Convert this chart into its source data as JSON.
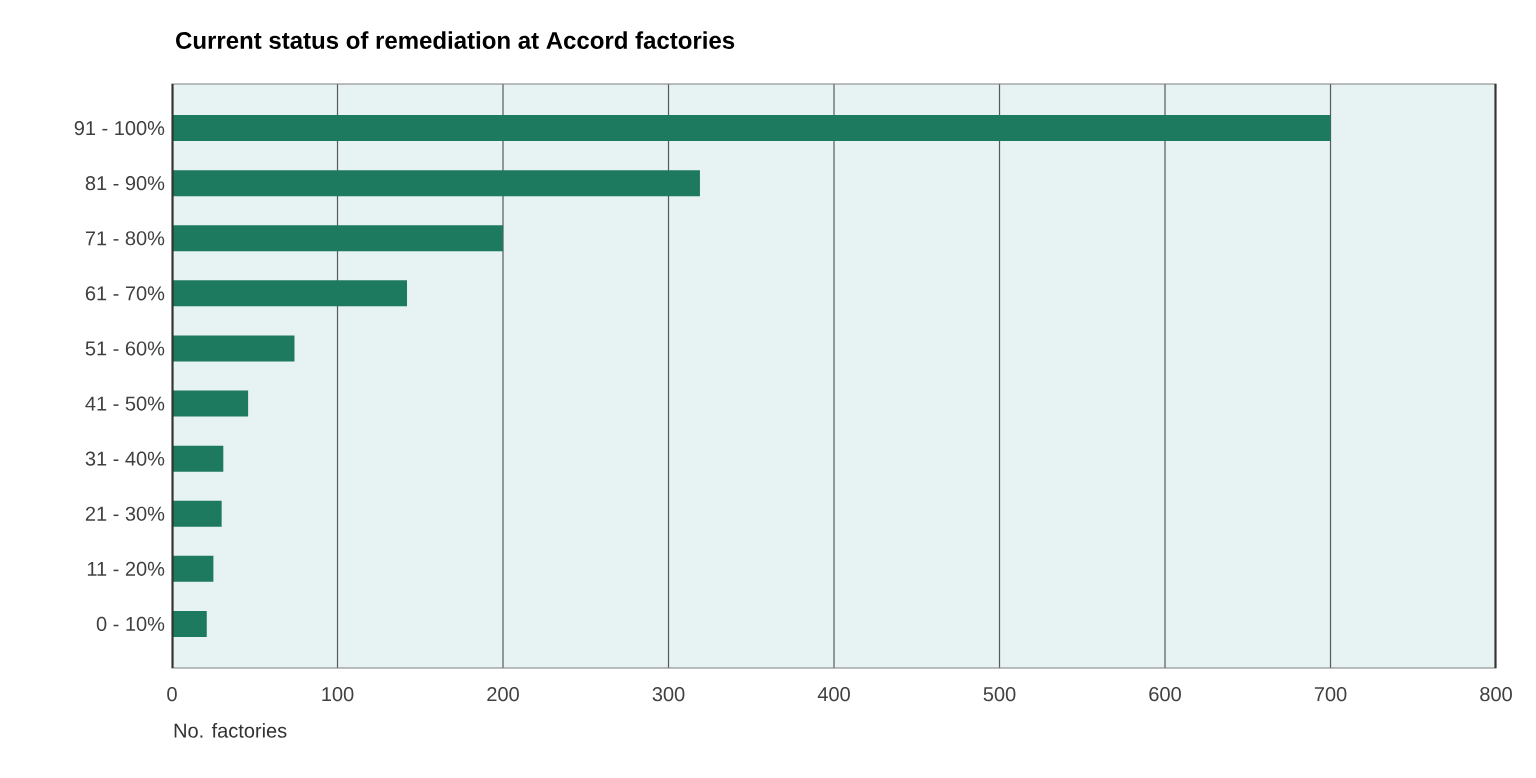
{
  "chart_data": {
    "type": "bar",
    "orientation": "horizontal",
    "title": "Current status of remediation at Accord factories",
    "xlabel": "No. factories",
    "categories": [
      "91 - 100%",
      "81 - 90%",
      "71 - 80%",
      "61 - 70%",
      "51 - 60%",
      "41 - 50%",
      "31 - 40%",
      "21 - 30%",
      "11 - 20%",
      "0 - 10%"
    ],
    "values": [
      700,
      319,
      200,
      142,
      74,
      46,
      31,
      30,
      25,
      21
    ],
    "color": "#1e7a5e",
    "xlim": [
      0,
      800
    ],
    "xticks": [
      0,
      100,
      200,
      300,
      400,
      500,
      600,
      700,
      800
    ],
    "grid": "x"
  }
}
